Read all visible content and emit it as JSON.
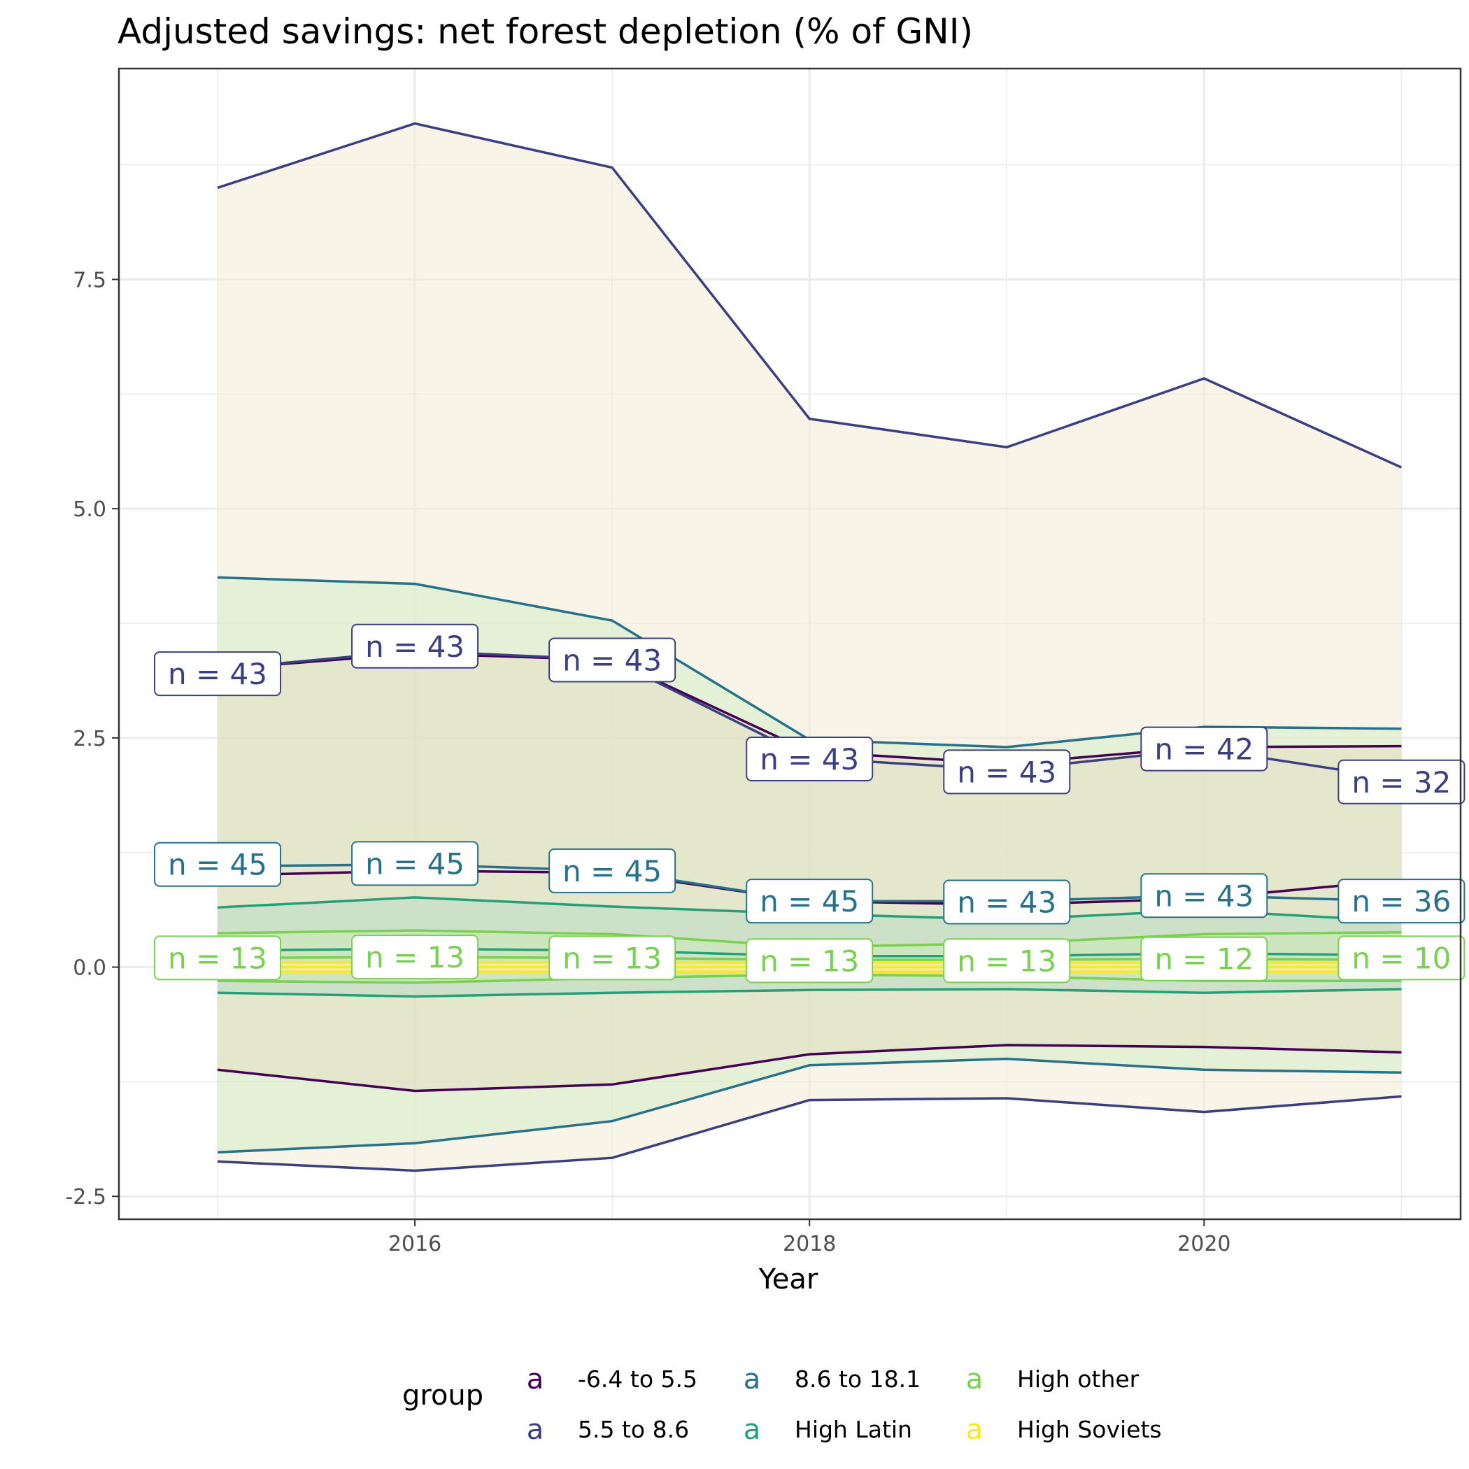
{
  "chart_data": {
    "type": "line",
    "title": "Adjusted savings: net forest depletion (% of GNI)",
    "xlabel": "Year",
    "ylabel": "",
    "xlim": [
      2014.5,
      2021.3
    ],
    "ylim": [
      -2.75,
      9.8
    ],
    "x_ticks": [
      2016,
      2018,
      2020
    ],
    "y_ticks": [
      -2.5,
      0.0,
      2.5,
      5.0,
      7.5
    ],
    "y_tick_labels": [
      "-2.5",
      "0.0",
      "2.5",
      "5.0",
      "7.5"
    ],
    "grid": true,
    "legend": {
      "title": "group",
      "position": "bottom",
      "key_glyph": "a"
    },
    "x": [
      2015,
      2016,
      2017,
      2018,
      2019,
      2020,
      2021
    ],
    "series": [
      {
        "name": "-6.4 to 5.5",
        "color": "#440154",
        "fill": "#e6dfc4",
        "mean": [
          1.0,
          1.05,
          1.03,
          0.72,
          0.68,
          0.75,
          0.95
        ],
        "upper": [
          3.25,
          3.42,
          3.35,
          2.35,
          2.22,
          2.4,
          2.41
        ],
        "lower": [
          -1.12,
          -1.35,
          -1.28,
          -0.95,
          -0.85,
          -0.87,
          -0.93
        ],
        "n": [
          43,
          43,
          43,
          43,
          43,
          42,
          32
        ]
      },
      {
        "name": "5.5 to 8.6",
        "color": "#3b3f7f",
        "fill": "#f2edd5",
        "mean": [
          3.25,
          3.45,
          3.35,
          2.28,
          2.15,
          2.38,
          2.05
        ],
        "upper": [
          8.5,
          9.2,
          8.72,
          5.98,
          5.67,
          6.42,
          5.45
        ],
        "lower": [
          -2.12,
          -2.22,
          -2.08,
          -1.45,
          -1.43,
          -1.58,
          -1.41
        ],
        "n": [
          43,
          43,
          43,
          43,
          43,
          42,
          32
        ]
      },
      {
        "name": "8.6 to 18.1",
        "color": "#27718a",
        "fill": "#d5ecc9",
        "mean": [
          1.1,
          1.12,
          1.05,
          0.72,
          0.72,
          0.78,
          0.72
        ],
        "upper": [
          4.25,
          4.18,
          3.78,
          2.48,
          2.4,
          2.62,
          2.6
        ],
        "lower": [
          -2.02,
          -1.92,
          -1.68,
          -1.07,
          -1.0,
          -1.12,
          -1.15
        ],
        "n": [
          45,
          45,
          45,
          45,
          43,
          43,
          36
        ]
      },
      {
        "name": "High Latin",
        "color": "#22a179",
        "fill": "#b8dcc4",
        "mean": [
          0.18,
          0.2,
          0.18,
          0.12,
          0.12,
          0.15,
          0.13
        ],
        "upper": [
          0.65,
          0.76,
          0.66,
          0.58,
          0.52,
          0.62,
          0.5
        ],
        "lower": [
          -0.28,
          -0.32,
          -0.28,
          -0.25,
          -0.24,
          -0.28,
          -0.24
        ],
        "n": [
          45,
          45,
          45,
          45,
          43,
          43,
          36
        ]
      },
      {
        "name": "High other",
        "color": "#7ad151",
        "fill": "#cdebb8",
        "mean": [
          0.1,
          0.11,
          0.1,
          0.08,
          0.08,
          0.09,
          0.08
        ],
        "upper": [
          0.37,
          0.4,
          0.36,
          0.22,
          0.26,
          0.36,
          0.38
        ],
        "lower": [
          -0.15,
          -0.17,
          -0.12,
          -0.08,
          -0.1,
          -0.15,
          -0.15
        ],
        "n": [
          13,
          13,
          13,
          13,
          13,
          12,
          10
        ]
      },
      {
        "name": "High Soviets",
        "color": "#fde725",
        "fill": "#fbf3b0",
        "mean": [
          0.0,
          0.0,
          0.0,
          0.0,
          0.0,
          0.0,
          0.0
        ],
        "upper": [
          0.05,
          0.05,
          0.05,
          0.05,
          0.05,
          0.05,
          0.05
        ],
        "lower": [
          -0.05,
          -0.05,
          -0.05,
          -0.05,
          -0.05,
          -0.05,
          -0.05
        ],
        "n": [
          13,
          13,
          13,
          13,
          13,
          12,
          10
        ]
      }
    ],
    "n_labels": [
      {
        "color": "#3b3f7f",
        "y": [
          3.2,
          3.5,
          3.35,
          2.27,
          2.13,
          2.38,
          2.02
        ],
        "text": [
          "n = 43",
          "n = 43",
          "n = 43",
          "n = 43",
          "n = 43",
          "n = 42",
          "n = 32"
        ]
      },
      {
        "color": "#27718a",
        "y": [
          1.12,
          1.13,
          1.05,
          0.72,
          0.71,
          0.78,
          0.72
        ],
        "text": [
          "n = 45",
          "n = 45",
          "n = 45",
          "n = 45",
          "n = 43",
          "n = 43",
          "n = 36"
        ]
      },
      {
        "color": "#7ad151",
        "y": [
          0.1,
          0.11,
          0.1,
          0.07,
          0.07,
          0.09,
          0.1
        ],
        "text": [
          "n = 13",
          "n = 13",
          "n = 13",
          "n = 13",
          "n = 13",
          "n = 12",
          "n = 10"
        ]
      }
    ]
  }
}
